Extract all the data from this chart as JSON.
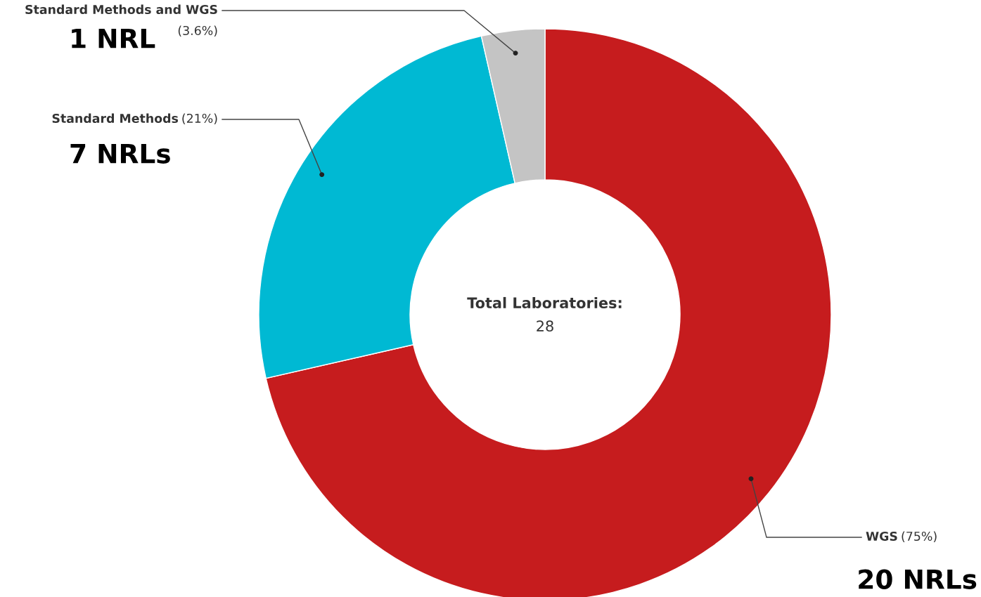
{
  "chart_data": {
    "type": "donut",
    "title": "Total Laboratories:",
    "subtitle": "28",
    "categories": [
      "WGS",
      "Standard Methods",
      "Standard Methods and WGS"
    ],
    "values": [
      20,
      7,
      1
    ],
    "colors": [
      "#c61c1e",
      "#00b9d3",
      "#c4c4c4"
    ],
    "value_labels": [
      "20 NRLs",
      "7 NRLs",
      "1 NRL"
    ],
    "annotations": [
      "(75%)",
      "(21%)",
      "(3.6%)"
    ]
  }
}
